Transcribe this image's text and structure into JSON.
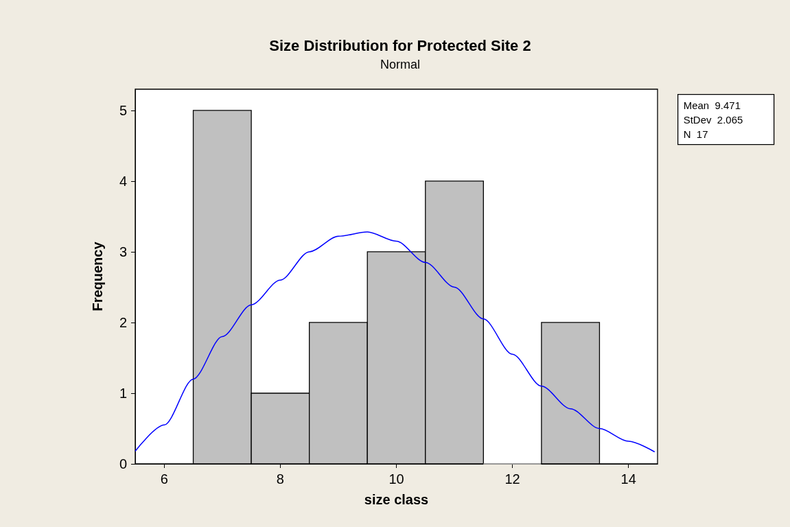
{
  "chart_data": {
    "type": "histogram",
    "title": "Size Distribution for Protected Site 2",
    "subtitle": "Normal",
    "xlabel": "size class",
    "ylabel": "Frequency",
    "bins": [
      6.5,
      7.5,
      8.5,
      9.5,
      10.5,
      11.5,
      12.5,
      13.5
    ],
    "values": [
      5,
      1,
      2,
      3,
      4,
      0,
      2
    ],
    "color": "#c0c0c0",
    "series": [
      {
        "type": "line",
        "color": "#0000ff",
        "x": [
          5.5,
          6,
          6.5,
          7,
          7.5,
          8,
          8.5,
          9,
          9.5,
          10,
          10.5,
          11,
          11.5,
          12,
          12.5,
          13,
          13.5,
          14,
          14.45
        ],
        "values": [
          0.18,
          0.55,
          1.2,
          1.8,
          2.25,
          2.6,
          3.0,
          3.22,
          3.28,
          3.15,
          2.85,
          2.5,
          2.05,
          1.55,
          1.1,
          0.78,
          0.5,
          0.32,
          0.17
        ]
      }
    ],
    "xlim": [
      5.5,
      14.5
    ],
    "xticks": [
      6,
      8,
      10,
      12,
      14
    ],
    "ylim": [
      0,
      5.3
    ],
    "yticks": [
      0,
      1,
      2,
      3,
      4,
      5
    ],
    "annotations": [
      "Mean  9.471",
      "StDev  2.065",
      "N  17"
    ],
    "grid": false
  }
}
